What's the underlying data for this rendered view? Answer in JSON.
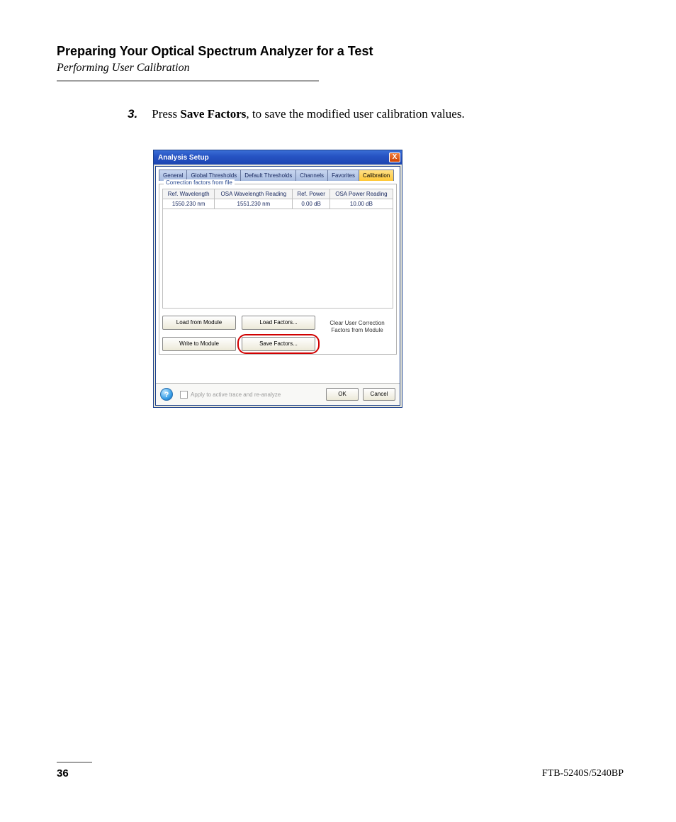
{
  "heading": "Preparing Your Optical Spectrum Analyzer for a Test",
  "subheading": "Performing User Calibration",
  "step": {
    "number": "3.",
    "prefix": "Press ",
    "bold": "Save Factors",
    "suffix": ", to save the modified user calibration values."
  },
  "dialog": {
    "title": "Analysis Setup",
    "close_x": "X",
    "tabs": [
      "General",
      "Global Thresholds",
      "Default Thresholds",
      "Channels",
      "Favorites",
      "Calibration"
    ],
    "active_tab_index": 5,
    "group_label": "Correction factors from file",
    "columns": [
      "Ref. Wavelength",
      "OSA Wavelength Reading",
      "Ref. Power",
      "OSA Power Reading"
    ],
    "row": [
      "1550.230 nm",
      "1551.230 nm",
      "0.00 dB",
      "10.00 dB"
    ],
    "buttons": {
      "load_module": "Load from Module",
      "write_module": "Write to Module",
      "load_factors": "Load Factors...",
      "save_factors": "Save Factors...",
      "clear_text": "Clear User Correction Factors from Module"
    },
    "footer": {
      "apply_label": "Apply to active trace and re-analyze",
      "ok": "OK",
      "cancel": "Cancel"
    }
  },
  "page_number": "36",
  "model": "FTB-5240S/5240BP",
  "colors": {
    "titlebar_gradient_top": "#3a6ed5",
    "titlebar_gradient_bottom": "#1d45b0",
    "active_tab_top": "#ffe088",
    "active_tab_bottom": "#ffc838",
    "highlight_ring": "#d00000",
    "rule": "#a0a0a0",
    "dialog_border": "#1a3f8b"
  }
}
